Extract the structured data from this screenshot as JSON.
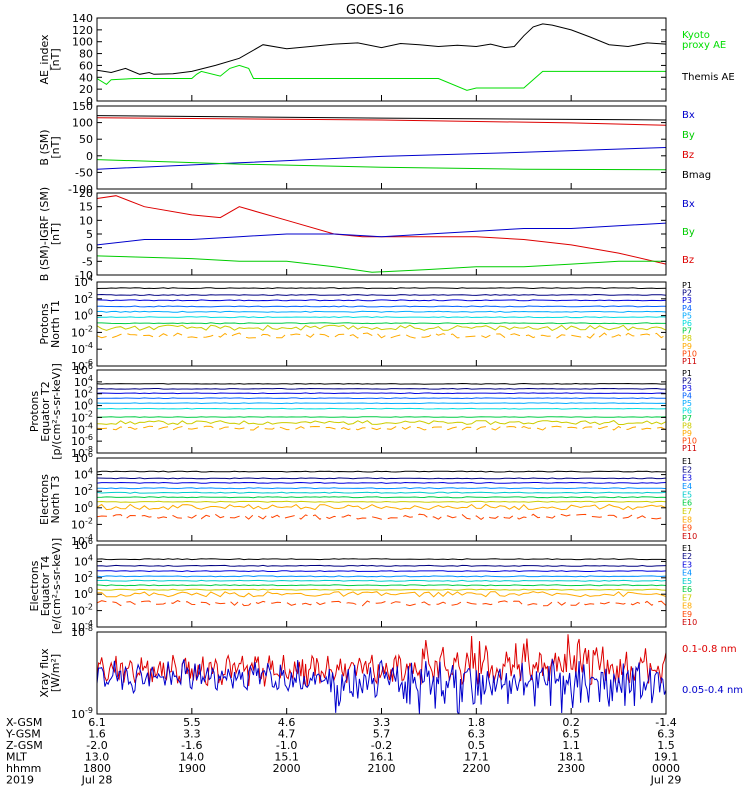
{
  "title": "GOES-16",
  "chart_data": [
    {
      "id": "ae",
      "type": "line",
      "ylabel": "AE_index\n[nT]",
      "yticks": [
        "140",
        "120",
        "100",
        "80",
        "60",
        "40",
        "20",
        "0"
      ],
      "ylim": [
        0,
        140
      ],
      "legend": [
        {
          "text": "Kyoto",
          "color": "#00dd00"
        },
        {
          "text": "proxy AE",
          "color": "#00dd00"
        },
        {
          "text": "Themis AE",
          "color": "#000000"
        }
      ],
      "series": [
        {
          "color": "#000000",
          "x": [
            0,
            0.15,
            0.3,
            0.45,
            0.55,
            0.6,
            0.8,
            1,
            1.25,
            1.5,
            1.75,
            2,
            2.25,
            2.5,
            2.75,
            3,
            3.2,
            3.4,
            3.6,
            3.8,
            4,
            4.15,
            4.3,
            4.4,
            4.5,
            4.6,
            4.7,
            4.8,
            5,
            5.2,
            5.4,
            5.6,
            5.8,
            6
          ],
          "y": [
            52,
            48,
            55,
            45,
            48,
            45,
            46,
            50,
            60,
            72,
            95,
            88,
            92,
            96,
            98,
            90,
            97,
            95,
            92,
            94,
            92,
            96,
            90,
            92,
            110,
            125,
            130,
            128,
            120,
            108,
            95,
            92,
            98,
            96
          ]
        },
        {
          "color": "#00dd00",
          "x": [
            0,
            0.1,
            0.15,
            0.4,
            1.0,
            1.05,
            1.1,
            1.3,
            1.4,
            1.5,
            1.6,
            1.65,
            3.6,
            3.9,
            4.0,
            4.5,
            4.7,
            6
          ],
          "y": [
            38,
            28,
            36,
            38,
            38,
            45,
            50,
            42,
            55,
            60,
            55,
            38,
            38,
            18,
            22,
            22,
            50,
            50
          ]
        }
      ]
    },
    {
      "id": "bsm",
      "type": "line",
      "ylabel": "B (SM)\n[nT]",
      "yticks": [
        "150",
        "100",
        "50",
        "0",
        "-50",
        "-100"
      ],
      "ylim": [
        -110,
        150
      ],
      "legend": [
        {
          "text": "Bx",
          "color": "#0000cc"
        },
        {
          "text": "By",
          "color": "#00cc00"
        },
        {
          "text": "Bz",
          "color": "#dd0000"
        },
        {
          "text": "Bmag",
          "color": "#000000"
        }
      ],
      "series": [
        {
          "color": "#000000",
          "x": [
            0,
            3,
            6
          ],
          "y": [
            120,
            112,
            106
          ]
        },
        {
          "color": "#dd0000",
          "x": [
            0,
            3,
            5,
            6
          ],
          "y": [
            113,
            106,
            97,
            90
          ]
        },
        {
          "color": "#0000cc",
          "x": [
            0,
            1.5,
            3,
            4.5,
            6
          ],
          "y": [
            -48,
            -28,
            -8,
            5,
            20
          ]
        },
        {
          "color": "#00cc00",
          "x": [
            0,
            1.5,
            3,
            4.5,
            6
          ],
          "y": [
            -18,
            -32,
            -42,
            -48,
            -50
          ]
        }
      ]
    },
    {
      "id": "bigrf",
      "type": "line",
      "ylabel": "B (SM)-IGRF (SM)\n[nT]",
      "yticks": [
        "20",
        "15",
        "10",
        "5",
        "0",
        "-5",
        "-10"
      ],
      "ylim": [
        -10,
        20
      ],
      "legend": [
        {
          "text": "Bx",
          "color": "#0000cc"
        },
        {
          "text": "By",
          "color": "#00cc00"
        },
        {
          "text": "Bz",
          "color": "#dd0000"
        }
      ],
      "series": [
        {
          "color": "#dd0000",
          "x": [
            0,
            0.2,
            0.5,
            1,
            1.3,
            1.5,
            2,
            2.5,
            2.8,
            3,
            3.5,
            4,
            4.5,
            5,
            5.5,
            6
          ],
          "y": [
            18,
            19,
            15,
            12,
            11,
            15,
            10,
            5,
            4,
            4,
            4,
            4,
            3,
            1,
            -2,
            -6
          ]
        },
        {
          "color": "#0000cc",
          "x": [
            0,
            0.5,
            1,
            1.5,
            2,
            2.5,
            3,
            3.5,
            4,
            4.5,
            5,
            5.5,
            6
          ],
          "y": [
            1,
            3,
            3,
            4,
            5,
            5,
            4,
            5,
            6,
            7,
            7,
            8,
            9
          ]
        },
        {
          "color": "#00cc00",
          "x": [
            0,
            0.5,
            1,
            1.5,
            2,
            2.5,
            2.9,
            3.5,
            4,
            4.5,
            5,
            5.5,
            6
          ],
          "y": [
            -3,
            -3.5,
            -4,
            -5,
            -5,
            -7,
            -9,
            -8,
            -7,
            -7,
            -6,
            -5,
            -5
          ]
        }
      ]
    },
    {
      "id": "pt1",
      "type": "line",
      "ylabel": "Protons\nNorth T1",
      "yticks": [
        "10^4",
        "10^2",
        "10^0",
        "10^-2",
        "10^-4",
        "10^-6"
      ],
      "ylim": [
        -7,
        4
      ],
      "legend": [
        {
          "text": "P1",
          "color": "#000000"
        },
        {
          "text": "P2",
          "color": "#000080"
        },
        {
          "text": "P3",
          "color": "#0000dd"
        },
        {
          "text": "P4",
          "color": "#0060ff"
        },
        {
          "text": "P5",
          "color": "#00aaff"
        },
        {
          "text": "P6",
          "color": "#00dddd"
        },
        {
          "text": "P7",
          "color": "#00cc44"
        },
        {
          "text": "P8",
          "color": "#cccc00"
        },
        {
          "text": "P9",
          "color": "#ffaa00"
        },
        {
          "text": "P10",
          "color": "#ff4400"
        },
        {
          "text": "P11",
          "color": "#cc0000"
        }
      ],
      "levels": [
        3.2,
        2.3,
        1.6,
        0.8,
        0.1,
        -0.6,
        -1.4,
        -2.0,
        -3.0
      ]
    },
    {
      "id": "pt2",
      "type": "line",
      "ylabel": "Protons\nEquator T2\n[p/(cm²-s-sr-keV)]",
      "yticks": [
        "10^6",
        "10^4",
        "10^2",
        "10^0",
        "10^-2",
        "10^-4",
        "10^-6",
        "10^-8"
      ],
      "ylim": [
        -9,
        6
      ],
      "legend": [
        {
          "text": "P1",
          "color": "#000000"
        },
        {
          "text": "P2",
          "color": "#000080"
        },
        {
          "text": "P3",
          "color": "#0000dd"
        },
        {
          "text": "P4",
          "color": "#0060ff"
        },
        {
          "text": "P5",
          "color": "#00aaff"
        },
        {
          "text": "P6",
          "color": "#00dddd"
        },
        {
          "text": "P7",
          "color": "#00cc44"
        },
        {
          "text": "P8",
          "color": "#cccc00"
        },
        {
          "text": "P9",
          "color": "#ffaa00"
        },
        {
          "text": "P10",
          "color": "#ff4400"
        },
        {
          "text": "P11",
          "color": "#cc0000"
        }
      ],
      "levels": [
        3.5,
        2.6,
        1.8,
        0.9,
        0.0,
        -1.0,
        -2.5,
        -3.5,
        -4.5
      ]
    },
    {
      "id": "et3",
      "type": "line",
      "ylabel": "Electrons\nNorth T3",
      "yticks": [
        "10^6",
        "10^4",
        "10^2",
        "10^0",
        "10^-2",
        "10^-4"
      ],
      "ylim": [
        -4.5,
        6.5
      ],
      "legend": [
        {
          "text": "E1",
          "color": "#000000"
        },
        {
          "text": "E2",
          "color": "#000080"
        },
        {
          "text": "E3",
          "color": "#0000dd"
        },
        {
          "text": "E4",
          "color": "#0090ff"
        },
        {
          "text": "E5",
          "color": "#00cccc"
        },
        {
          "text": "E6",
          "color": "#00cc44"
        },
        {
          "text": "E7",
          "color": "#cccc00"
        },
        {
          "text": "E8",
          "color": "#ffaa00"
        },
        {
          "text": "E9",
          "color": "#ff4400"
        },
        {
          "text": "E10",
          "color": "#cc0000"
        }
      ],
      "levels": [
        4.7,
        3.8,
        3.2,
        2.5,
        1.9,
        1.3,
        0.7,
        0.0,
        -1.3
      ]
    },
    {
      "id": "et4",
      "type": "line",
      "ylabel": "Electrons\nEquator T4\n[e/(cm²-s-sr-keV)]",
      "yticks": [
        "10^6",
        "10^4",
        "10^2",
        "10^0",
        "10^-2",
        "10^-4"
      ],
      "ylim": [
        -4.5,
        6.5
      ],
      "legend": [
        {
          "text": "E1",
          "color": "#000000"
        },
        {
          "text": "E2",
          "color": "#000080"
        },
        {
          "text": "E3",
          "color": "#0000dd"
        },
        {
          "text": "E4",
          "color": "#0090ff"
        },
        {
          "text": "E5",
          "color": "#00cccc"
        },
        {
          "text": "E6",
          "color": "#00cc44"
        },
        {
          "text": "E7",
          "color": "#cccc00"
        },
        {
          "text": "E8",
          "color": "#ffaa00"
        },
        {
          "text": "E9",
          "color": "#ff4400"
        },
        {
          "text": "E10",
          "color": "#cc0000"
        }
      ],
      "levels": [
        4.6,
        3.7,
        3.0,
        2.3,
        1.7,
        1.1,
        0.5,
        -0.1,
        -1.3
      ]
    },
    {
      "id": "xray",
      "type": "line",
      "ylabel": "Xray flux\n[W/m²]",
      "yticks": [
        "10^-8",
        "10^-9"
      ],
      "ylim": [
        -9.1,
        -7.9
      ],
      "legend": [
        {
          "text": "0.1-0.8 nm",
          "color": "#dd0000"
        },
        {
          "text": "0.05-0.4 nm",
          "color": "#0000cc"
        }
      ],
      "levels": [
        -8.45,
        -8.55
      ]
    }
  ],
  "time_axis": {
    "rows": [
      {
        "label": "X-GSM",
        "values": [
          "6.1",
          "5.5",
          "4.6",
          "3.3",
          "1.8",
          "0.2",
          "-1.4"
        ]
      },
      {
        "label": "Y-GSM",
        "values": [
          "1.6",
          "3.3",
          "4.7",
          "5.7",
          "6.3",
          "6.5",
          "6.3"
        ]
      },
      {
        "label": "Z-GSM",
        "values": [
          "-2.0",
          "-1.6",
          "-1.0",
          "-0.2",
          "0.5",
          "1.1",
          "1.5"
        ]
      },
      {
        "label": "MLT",
        "values": [
          "13.0",
          "14.0",
          "15.1",
          "16.1",
          "17.1",
          "18.1",
          "19.1"
        ]
      },
      {
        "label": "hhmm",
        "values": [
          "1800",
          "1900",
          "2000",
          "2100",
          "2200",
          "2300",
          "0000"
        ]
      },
      {
        "label": "2019",
        "values": [
          "Jul 28",
          "",
          "",
          "",
          "",
          "",
          "Jul 29"
        ]
      }
    ]
  }
}
